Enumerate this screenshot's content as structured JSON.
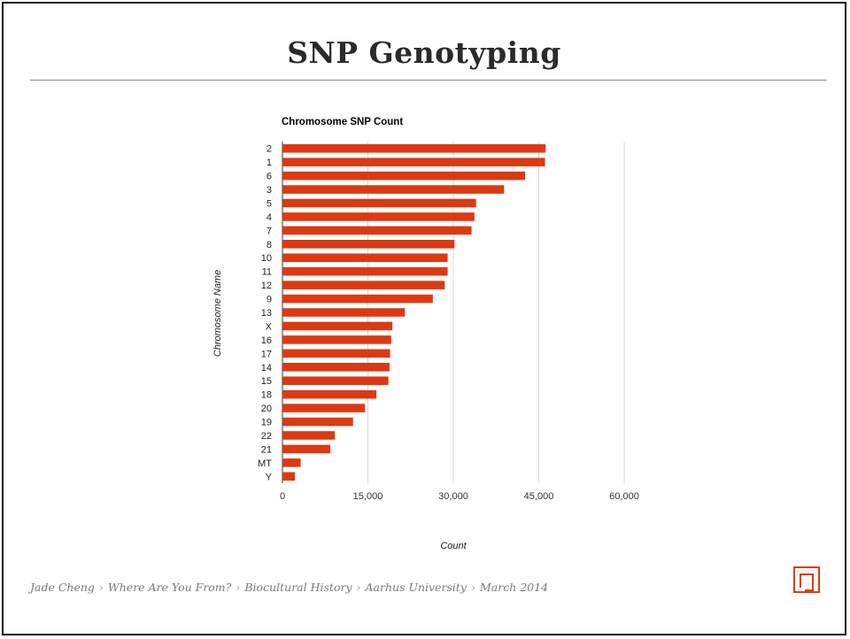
{
  "slide": {
    "title": "SNP Genotyping",
    "footer": [
      "Jade Cheng",
      "Where Are You From?",
      "Biocultural History",
      "Aarhus University",
      "March 2014"
    ],
    "footer_separator": "›",
    "logo_icon": "red-seal-stamp-icon"
  },
  "chart_data": {
    "type": "bar",
    "orientation": "horizontal",
    "title": "Chromosome SNP Count",
    "xlabel": "Count",
    "ylabel": "Chromosome Name",
    "xlim": [
      0,
      60000
    ],
    "xticks": [
      0,
      15000,
      30000,
      45000,
      60000
    ],
    "xtick_labels": [
      "0",
      "15,000",
      "30,000",
      "45,000",
      "60,000"
    ],
    "grid": true,
    "legend": "none",
    "bar_color": "#dc3912",
    "categories": [
      "2",
      "1",
      "6",
      "3",
      "5",
      "4",
      "7",
      "8",
      "10",
      "11",
      "12",
      "9",
      "13",
      "X",
      "16",
      "17",
      "14",
      "15",
      "18",
      "20",
      "19",
      "22",
      "21",
      "MT",
      "Y"
    ],
    "values": [
      46200,
      46100,
      42600,
      38900,
      34000,
      33700,
      33200,
      30200,
      29000,
      29000,
      28500,
      26400,
      21500,
      19300,
      19100,
      18900,
      18800,
      18600,
      16500,
      14500,
      12400,
      9200,
      8400,
      3200,
      2200
    ]
  }
}
